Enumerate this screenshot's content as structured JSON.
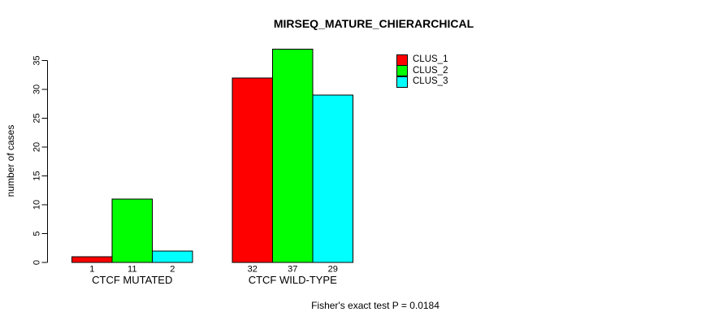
{
  "chart_data": {
    "type": "bar",
    "title": "MIRSEQ_MATURE_CHIERARCHICAL",
    "ylabel": "number of cases",
    "xlabel": "",
    "categories": [
      "CTCF MUTATED",
      "CTCF WILD-TYPE"
    ],
    "series": [
      {
        "name": "CLUS_1",
        "color": "#ff0000",
        "values": [
          1,
          32
        ]
      },
      {
        "name": "CLUS_2",
        "color": "#00ff00",
        "values": [
          11,
          37
        ]
      },
      {
        "name": "CLUS_3",
        "color": "#00ffff",
        "values": [
          2,
          29
        ]
      }
    ],
    "show_bar_values": true,
    "yticks": [
      0,
      5,
      10,
      15,
      20,
      25,
      30,
      35
    ],
    "ylim": [
      0,
      37
    ],
    "grid": false,
    "legend_position": "top-right",
    "legend_entries": [
      "CLUS_1",
      "CLUS_2",
      "CLUS_3"
    ],
    "annotation": "Fisher's exact test P = 0.0184",
    "colors": {
      "bar_border": "#000000",
      "axis": "#000000",
      "text": "#000000",
      "background": "#ffffff"
    }
  }
}
